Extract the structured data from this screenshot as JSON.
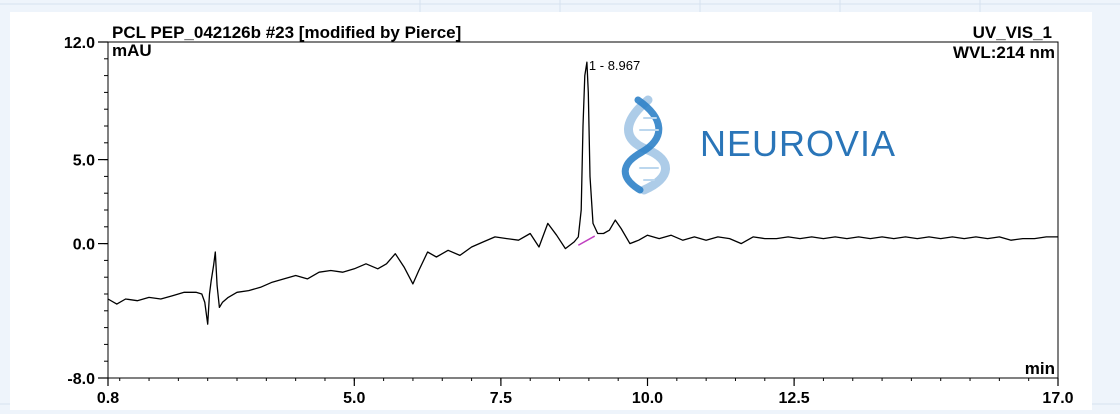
{
  "chart_data": {
    "type": "line",
    "title": "PCL PEP_042126b #23 [modified by Pierce]",
    "channel": "UV_VIS_1",
    "wavelength": "WVL:214 nm",
    "ylabel": "mAU",
    "xlabel": "min",
    "xlim": [
      0.8,
      17.0
    ],
    "ylim": [
      -8.0,
      12.0
    ],
    "x_ticks": [
      {
        "v": 0.8,
        "label": "0.8"
      },
      {
        "v": 5.0,
        "label": "5.0"
      },
      {
        "v": 7.5,
        "label": "7.5"
      },
      {
        "v": 10.0,
        "label": "10.0"
      },
      {
        "v": 12.5,
        "label": "12.5"
      },
      {
        "v": 17.0,
        "label": "17.0"
      }
    ],
    "y_ticks": [
      {
        "v": 12.0,
        "label": "12.0"
      },
      {
        "v": 5.0,
        "label": "5.0"
      },
      {
        "v": 0.0,
        "label": "0.0"
      },
      {
        "v": -8.0,
        "label": "-8.0"
      }
    ],
    "peak_label": {
      "x": 8.967,
      "y": 10.0,
      "label": "1 - 8.967"
    },
    "series": [
      {
        "color": "#000000",
        "points": [
          [
            0.8,
            -3.3
          ],
          [
            0.95,
            -3.6
          ],
          [
            1.1,
            -3.3
          ],
          [
            1.3,
            -3.4
          ],
          [
            1.5,
            -3.2
          ],
          [
            1.7,
            -3.3
          ],
          [
            1.9,
            -3.1
          ],
          [
            2.1,
            -2.9
          ],
          [
            2.3,
            -2.9
          ],
          [
            2.4,
            -3.0
          ],
          [
            2.45,
            -3.5
          ],
          [
            2.5,
            -4.8
          ],
          [
            2.53,
            -3.0
          ],
          [
            2.56,
            -2.2
          ],
          [
            2.6,
            -1.3
          ],
          [
            2.63,
            -0.5
          ],
          [
            2.66,
            -2.5
          ],
          [
            2.7,
            -3.8
          ],
          [
            2.75,
            -3.5
          ],
          [
            2.85,
            -3.2
          ],
          [
            3.0,
            -2.9
          ],
          [
            3.2,
            -2.8
          ],
          [
            3.4,
            -2.6
          ],
          [
            3.6,
            -2.3
          ],
          [
            3.8,
            -2.1
          ],
          [
            4.0,
            -1.9
          ],
          [
            4.2,
            -2.1
          ],
          [
            4.4,
            -1.7
          ],
          [
            4.6,
            -1.6
          ],
          [
            4.8,
            -1.7
          ],
          [
            5.0,
            -1.5
          ],
          [
            5.2,
            -1.2
          ],
          [
            5.4,
            -1.5
          ],
          [
            5.55,
            -1.2
          ],
          [
            5.7,
            -0.6
          ],
          [
            5.85,
            -1.4
          ],
          [
            6.0,
            -2.4
          ],
          [
            6.1,
            -1.6
          ],
          [
            6.25,
            -0.5
          ],
          [
            6.4,
            -0.8
          ],
          [
            6.6,
            -0.4
          ],
          [
            6.8,
            -0.7
          ],
          [
            7.0,
            -0.2
          ],
          [
            7.2,
            0.1
          ],
          [
            7.4,
            0.4
          ],
          [
            7.6,
            0.3
          ],
          [
            7.8,
            0.2
          ],
          [
            8.0,
            0.6
          ],
          [
            8.15,
            -0.2
          ],
          [
            8.3,
            1.2
          ],
          [
            8.45,
            0.5
          ],
          [
            8.6,
            -0.3
          ],
          [
            8.75,
            0.1
          ],
          [
            8.82,
            0.4
          ],
          [
            8.87,
            2.0
          ],
          [
            8.9,
            7.0
          ],
          [
            8.93,
            10.0
          ],
          [
            8.967,
            10.8
          ],
          [
            8.99,
            9.0
          ],
          [
            9.02,
            4.0
          ],
          [
            9.07,
            1.2
          ],
          [
            9.15,
            0.6
          ],
          [
            9.25,
            0.6
          ],
          [
            9.35,
            0.8
          ],
          [
            9.45,
            1.4
          ],
          [
            9.55,
            0.9
          ],
          [
            9.7,
            0.0
          ],
          [
            9.85,
            0.2
          ],
          [
            10.0,
            0.5
          ],
          [
            10.2,
            0.3
          ],
          [
            10.4,
            0.5
          ],
          [
            10.6,
            0.2
          ],
          [
            10.8,
            0.4
          ],
          [
            11.0,
            0.2
          ],
          [
            11.2,
            0.4
          ],
          [
            11.4,
            0.3
          ],
          [
            11.6,
            0.0
          ],
          [
            11.8,
            0.4
          ],
          [
            12.0,
            0.3
          ],
          [
            12.2,
            0.3
          ],
          [
            12.4,
            0.4
          ],
          [
            12.6,
            0.3
          ],
          [
            12.8,
            0.4
          ],
          [
            13.0,
            0.3
          ],
          [
            13.2,
            0.4
          ],
          [
            13.4,
            0.3
          ],
          [
            13.6,
            0.4
          ],
          [
            13.8,
            0.3
          ],
          [
            14.0,
            0.4
          ],
          [
            14.2,
            0.3
          ],
          [
            14.4,
            0.4
          ],
          [
            14.6,
            0.3
          ],
          [
            14.8,
            0.4
          ],
          [
            15.0,
            0.3
          ],
          [
            15.2,
            0.4
          ],
          [
            15.4,
            0.3
          ],
          [
            15.6,
            0.4
          ],
          [
            15.8,
            0.3
          ],
          [
            16.0,
            0.4
          ],
          [
            16.2,
            0.2
          ],
          [
            16.4,
            0.3
          ],
          [
            16.6,
            0.3
          ],
          [
            16.8,
            0.4
          ],
          [
            17.0,
            0.4
          ]
        ]
      }
    ],
    "grid": false,
    "legend": "none"
  },
  "watermark": {
    "text": "NEUROVIA",
    "icon": "dna-helix-icon",
    "color": "#2a75b8"
  }
}
